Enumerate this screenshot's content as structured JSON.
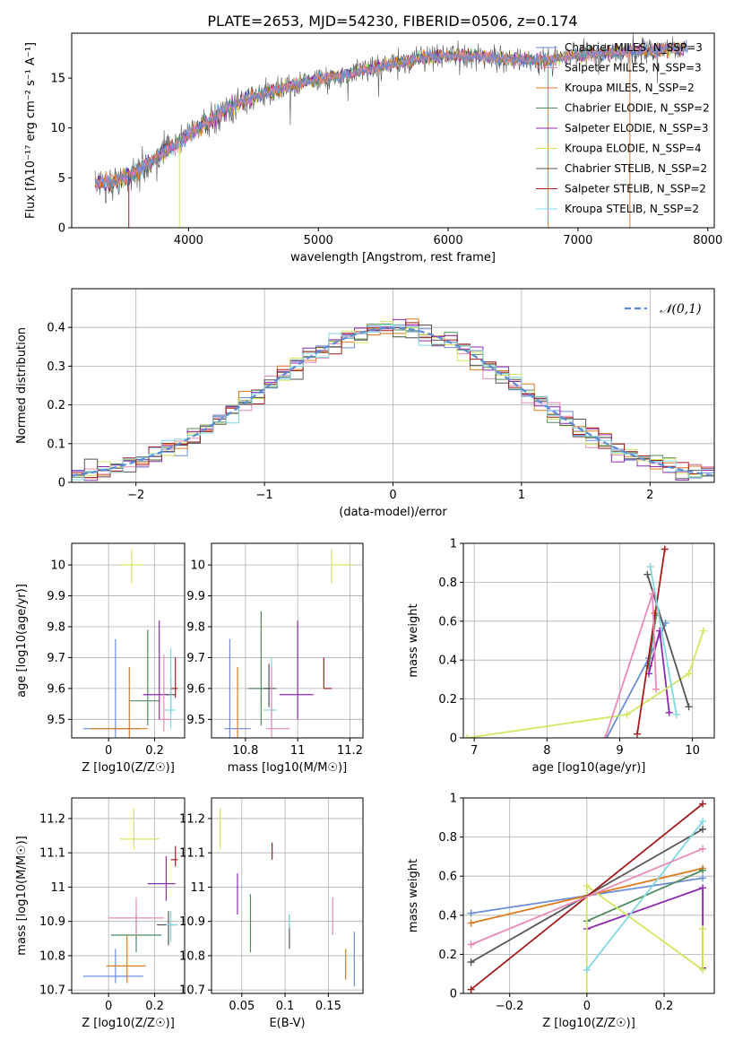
{
  "title": "PLATE=2653, MJD=54230, FIBERID=0506, z=0.174",
  "colors": [
    "#6a8fd8",
    "#e07b20",
    "#4f8a5e",
    "#8e2ab0",
    "#cfe860",
    "#555555",
    "#a51c1c",
    "#7fd8e0",
    "#e88ab8"
  ],
  "models": [
    {
      "label": "Chabrier MILES, N_SSP=3",
      "color": "#6a8fd8"
    },
    {
      "label": "Salpeter MILES, N_SSP=3",
      "color": "#e88ab8"
    },
    {
      "label": "Kroupa MILES, N_SSP=2",
      "color": "#e07b20"
    },
    {
      "label": "Chabrier ELODIE, N_SSP=2",
      "color": "#4f8a5e"
    },
    {
      "label": "Salpeter ELODIE, N_SSP=3",
      "color": "#8e2ab0"
    },
    {
      "label": "Kroupa ELODIE, N_SSP=4",
      "color": "#cfe860"
    },
    {
      "label": "Chabrier STELIB, N_SSP=2",
      "color": "#555555"
    },
    {
      "label": "Salpeter STELIB, N_SSP=2",
      "color": "#a51c1c"
    },
    {
      "label": "Kroupa STELIB, N_SSP=2",
      "color": "#7fd8e0"
    }
  ],
  "chart_data": [
    {
      "id": "spectrum",
      "type": "line",
      "xlabel": "wavelength [Angstrom, rest frame]",
      "ylabel": "Flux [fλ10⁻¹⁷ erg cm⁻² s⁻¹ A⁻¹]",
      "xlim": [
        3100,
        8050
      ],
      "ylim": [
        0,
        19.5
      ],
      "xticks": [
        4000,
        5000,
        6000,
        7000,
        8000
      ],
      "yticks": [
        0,
        5,
        10,
        15
      ],
      "continuum": {
        "x": [
          3280,
          3400,
          3550,
          3700,
          3850,
          3950,
          4050,
          4150,
          4300,
          4450,
          4600,
          4800,
          5000,
          5200,
          5400,
          5600,
          5800,
          6000,
          6200,
          6400,
          6600,
          6800,
          7000,
          7200,
          7400,
          7600,
          7800
        ],
        "y": [
          4.4,
          4.6,
          5.3,
          6.5,
          7.8,
          8.8,
          9.8,
          10.6,
          11.9,
          12.9,
          13.5,
          14.3,
          14.9,
          15.3,
          15.9,
          16.5,
          17.0,
          17.2,
          17.2,
          17.0,
          16.8,
          16.9,
          17.3,
          17.5,
          17.7,
          17.8,
          18.0
        ]
      },
      "model_drops_x": [
        3540,
        3930,
        6770,
        7400
      ]
    },
    {
      "id": "residuals",
      "type": "step",
      "xlabel": "(data-model)/error",
      "ylabel": "Normed distribution",
      "xlim": [
        -2.5,
        2.5
      ],
      "ylim": [
        0,
        0.5
      ],
      "xticks": [
        -2,
        -1,
        0,
        1,
        2
      ],
      "yticks": [
        0.0,
        0.1,
        0.2,
        0.3,
        0.4
      ],
      "legend": "𝒩(0,1)",
      "bin_width": 0.1
    },
    {
      "id": "age-vs-Z",
      "type": "errorbar",
      "xlabel": "Z [log10(Z/Z☉)]",
      "ylabel": "age  [log10(age/yr)]",
      "xlim": [
        -0.16,
        0.33
      ],
      "ylim": [
        9.44,
        10.07
      ],
      "xticks": [
        0.0,
        0.2
      ],
      "yticks": [
        9.5,
        9.6,
        9.7,
        9.8,
        9.9,
        10.0
      ],
      "points": [
        {
          "x": 0.03,
          "xerr": [
            0.14,
            0.11
          ],
          "y": 9.47,
          "yerr": [
            0.03,
            0.29
          ],
          "color": "#6a8fd8"
        },
        {
          "x": 0.09,
          "xerr": [
            0.17,
            0.08
          ],
          "y": 9.47,
          "yerr": [
            0.03,
            0.2
          ],
          "color": "#e07b20"
        },
        {
          "x": 0.17,
          "xerr": [
            0.08,
            0.05
          ],
          "y": 9.56,
          "yerr": [
            0.08,
            0.23
          ],
          "color": "#4f8a5e"
        },
        {
          "x": 0.22,
          "xerr": [
            0.07,
            0.04
          ],
          "y": 9.58,
          "yerr": [
            0.08,
            0.24
          ],
          "color": "#8e2ab0"
        },
        {
          "x": 0.1,
          "xerr": [
            0.05,
            0.05
          ],
          "y": 10.0,
          "yerr": [
            0.06,
            0.05
          ],
          "color": "#cfe860"
        },
        {
          "x": 0.27,
          "xerr": [
            0.02,
            0.02
          ],
          "y": 9.58,
          "yerr": [
            0.06,
            0.06
          ],
          "color": "#555555"
        },
        {
          "x": 0.29,
          "xerr": [
            0.02,
            0.01
          ],
          "y": 9.6,
          "yerr": [
            0.03,
            0.1
          ],
          "color": "#a51c1c"
        },
        {
          "x": 0.27,
          "xerr": [
            0.03,
            0.02
          ],
          "y": 9.53,
          "yerr": [
            0.06,
            0.2
          ],
          "color": "#7fd8e0"
        },
        {
          "x": 0.24,
          "xerr": [
            0.02,
            0.03
          ],
          "y": 9.5,
          "yerr": [
            0.04,
            0.21
          ],
          "color": "#e88ab8"
        }
      ]
    },
    {
      "id": "age-vs-mass",
      "type": "errorbar",
      "xlabel": "mass [log10(M/M☉)]",
      "ylabel": "",
      "xlim": [
        10.67,
        11.25
      ],
      "ylim": [
        9.44,
        10.07
      ],
      "xticks": [
        10.8,
        11.0,
        11.2
      ],
      "yticks": [
        9.5,
        9.6,
        9.7,
        9.8,
        9.9,
        10.0
      ],
      "points": [
        {
          "x": 10.74,
          "xerr": [
            0.02,
            0.08
          ],
          "y": 9.47,
          "yerr": [
            0.03,
            0.29
          ],
          "color": "#6a8fd8"
        },
        {
          "x": 10.77,
          "xerr": [
            0.0,
            0.0
          ],
          "y": 9.47,
          "yerr": [
            0.03,
            0.2
          ],
          "color": "#e07b20"
        },
        {
          "x": 10.86,
          "xerr": [
            0.05,
            0.06
          ],
          "y": 9.6,
          "yerr": [
            0.12,
            0.25
          ],
          "color": "#4f8a5e"
        },
        {
          "x": 11.0,
          "xerr": [
            0.07,
            0.06
          ],
          "y": 9.58,
          "yerr": [
            0.08,
            0.24
          ],
          "color": "#8e2ab0"
        },
        {
          "x": 11.13,
          "xerr": [
            0.0,
            0.08
          ],
          "y": 10.0,
          "yerr": [
            0.06,
            0.05
          ],
          "color": "#cfe860"
        },
        {
          "x": 10.89,
          "xerr": [
            0.02,
            0.02
          ],
          "y": 9.6,
          "yerr": [
            0.06,
            0.08
          ],
          "color": "#555555"
        },
        {
          "x": 11.1,
          "xerr": [
            0.0,
            0.03
          ],
          "y": 9.6,
          "yerr": [
            0.0,
            0.1
          ],
          "color": "#a51c1c"
        },
        {
          "x": 10.9,
          "xerr": [
            0.03,
            0.02
          ],
          "y": 9.53,
          "yerr": [
            0.06,
            0.17
          ],
          "color": "#7fd8e0"
        },
        {
          "x": 10.9,
          "xerr": [
            0.02,
            0.07
          ],
          "y": 9.47,
          "yerr": [
            0.03,
            0.2
          ],
          "color": "#e88ab8"
        }
      ]
    },
    {
      "id": "weight-vs-age",
      "type": "line",
      "xlabel": "age  [log10(age/yr)]",
      "ylabel": "mass weight",
      "xlim": [
        6.85,
        10.3
      ],
      "ylim": [
        0,
        1.0
      ],
      "xticks": [
        7,
        8,
        9,
        10
      ],
      "yticks": [
        0.0,
        0.2,
        0.4,
        0.6,
        0.8,
        1.0
      ],
      "series": [
        {
          "color": "#6a8fd8",
          "x": [
            8.82,
            9.4,
            9.63
          ],
          "y": [
            0.0,
            0.41,
            0.59
          ]
        },
        {
          "color": "#e07b20",
          "x": [
            9.4,
            9.48
          ],
          "y": [
            0.37,
            0.64
          ]
        },
        {
          "color": "#4f8a5e",
          "x": [
            9.4,
            9.5
          ],
          "y": [
            0.37,
            0.63
          ]
        },
        {
          "color": "#8e2ab0",
          "x": [
            9.4,
            9.55,
            9.68
          ],
          "y": [
            0.33,
            0.55,
            0.13
          ]
        },
        {
          "color": "#cfe860",
          "x": [
            6.9,
            9.1,
            9.95,
            10.15
          ],
          "y": [
            0.0,
            0.12,
            0.33,
            0.55
          ]
        },
        {
          "color": "#555555",
          "x": [
            9.38,
            9.95
          ],
          "y": [
            0.84,
            0.16
          ]
        },
        {
          "color": "#a51c1c",
          "x": [
            9.24,
            9.62
          ],
          "y": [
            0.02,
            0.97
          ]
        },
        {
          "color": "#7fd8e0",
          "x": [
            9.42,
            9.78
          ],
          "y": [
            0.88,
            0.12
          ]
        },
        {
          "color": "#e88ab8",
          "x": [
            8.8,
            9.45,
            9.5
          ],
          "y": [
            0.0,
            0.74,
            0.25
          ]
        }
      ]
    },
    {
      "id": "mass-vs-Z",
      "type": "errorbar",
      "xlabel": "Z [log10(Z/Z☉)]",
      "ylabel": "mass [log10(M/M☉)]",
      "xlim": [
        -0.16,
        0.33
      ],
      "ylim": [
        10.69,
        11.26
      ],
      "xticks": [
        0.0,
        0.2
      ],
      "yticks": [
        10.7,
        10.8,
        10.9,
        11.0,
        11.1,
        11.2
      ],
      "points": [
        {
          "x": 0.03,
          "xerr": [
            0.14,
            0.12
          ],
          "y": 10.74,
          "yerr": [
            0.02,
            0.08
          ],
          "color": "#6a8fd8"
        },
        {
          "x": 0.08,
          "xerr": [
            0.09,
            0.08
          ],
          "y": 10.77,
          "yerr": [
            0.05,
            0.09
          ],
          "color": "#e07b20"
        },
        {
          "x": 0.12,
          "xerr": [
            0.11,
            0.11
          ],
          "y": 10.86,
          "yerr": [
            0.05,
            0.06
          ],
          "color": "#4f8a5e"
        },
        {
          "x": 0.25,
          "xerr": [
            0.08,
            0.04
          ],
          "y": 11.01,
          "yerr": [
            0.05,
            0.08
          ],
          "color": "#8e2ab0"
        },
        {
          "x": 0.11,
          "xerr": [
            0.06,
            0.11
          ],
          "y": 11.14,
          "yerr": [
            0.03,
            0.09
          ],
          "color": "#cfe860"
        },
        {
          "x": 0.26,
          "xerr": [
            0.05,
            0.04
          ],
          "y": 10.89,
          "yerr": [
            0.06,
            0.04
          ],
          "color": "#555555"
        },
        {
          "x": 0.29,
          "xerr": [
            0.02,
            0.01
          ],
          "y": 11.08,
          "yerr": [
            0.02,
            0.04
          ],
          "color": "#a51c1c"
        },
        {
          "x": 0.27,
          "xerr": [
            0.02,
            0.03
          ],
          "y": 10.89,
          "yerr": [
            0.05,
            0.04
          ],
          "color": "#7fd8e0"
        },
        {
          "x": 0.12,
          "xerr": [
            0.12,
            0.12
          ],
          "y": 10.91,
          "yerr": [
            0.05,
            0.06
          ],
          "color": "#e88ab8"
        }
      ]
    },
    {
      "id": "mass-vs-ebv",
      "type": "errorbar",
      "xlabel": "E(B-V)",
      "ylabel": "",
      "xlim": [
        0.015,
        0.19
      ],
      "ylim": [
        10.69,
        11.26
      ],
      "xticks": [
        0.05,
        0.1,
        0.15
      ],
      "yticks": [
        10.7,
        10.8,
        10.9,
        11.0,
        11.1,
        11.2
      ],
      "points": [
        {
          "x": 0.18,
          "xerr": [
            0,
            0
          ],
          "y": 10.75,
          "yerr": [
            0.04,
            0.12
          ],
          "color": "#6a8fd8"
        },
        {
          "x": 0.17,
          "xerr": [
            0,
            0
          ],
          "y": 10.77,
          "yerr": [
            0.04,
            0.05
          ],
          "color": "#e07b20"
        },
        {
          "x": 0.06,
          "xerr": [
            0,
            0
          ],
          "y": 10.86,
          "yerr": [
            0.05,
            0.12
          ],
          "color": "#4f8a5e"
        },
        {
          "x": 0.045,
          "xerr": [
            0,
            0
          ],
          "y": 11.0,
          "yerr": [
            0.08,
            0.04
          ],
          "color": "#8e2ab0"
        },
        {
          "x": 0.025,
          "xerr": [
            0,
            0
          ],
          "y": 11.16,
          "yerr": [
            0.05,
            0.07
          ],
          "color": "#cfe860"
        },
        {
          "x": 0.105,
          "xerr": [
            0,
            0
          ],
          "y": 10.87,
          "yerr": [
            0.05,
            0.05
          ],
          "color": "#555555"
        },
        {
          "x": 0.085,
          "xerr": [
            0,
            0
          ],
          "y": 11.1,
          "yerr": [
            0.02,
            0.03
          ],
          "color": "#a51c1c"
        },
        {
          "x": 0.105,
          "xerr": [
            0,
            0
          ],
          "y": 10.88,
          "yerr": [
            0.0,
            0.04
          ],
          "color": "#7fd8e0"
        },
        {
          "x": 0.155,
          "xerr": [
            0,
            0
          ],
          "y": 10.92,
          "yerr": [
            0.06,
            0.05
          ],
          "color": "#e88ab8"
        }
      ]
    },
    {
      "id": "weight-vs-Z",
      "type": "line",
      "xlabel": "Z [log10(Z/Z☉)]",
      "ylabel": "mass weight",
      "xlim": [
        -0.32,
        0.33
      ],
      "ylim": [
        0,
        1.0
      ],
      "xticks": [
        -0.2,
        0.0,
        0.2
      ],
      "yticks": [
        0.0,
        0.2,
        0.4,
        0.6,
        0.8,
        1.0
      ],
      "series": [
        {
          "color": "#6a8fd8",
          "x": [
            -0.3,
            0.0,
            0.3
          ],
          "y": [
            0.41,
            0.5,
            0.59
          ]
        },
        {
          "color": "#e07b20",
          "x": [
            -0.3,
            0.0,
            0.3
          ],
          "y": [
            0.36,
            0.5,
            0.64
          ]
        },
        {
          "color": "#4f8a5e",
          "x": [
            0.0,
            0.3
          ],
          "y": [
            0.37,
            0.63
          ]
        },
        {
          "color": "#8e2ab0",
          "x": [
            0.0,
            0.3,
            0.3
          ],
          "y": [
            0.33,
            0.54,
            0.13
          ]
        },
        {
          "color": "#cfe860",
          "x": [
            0.0,
            0.0,
            0.3,
            0.3
          ],
          "y": [
            0.0,
            0.55,
            0.12,
            0.33
          ]
        },
        {
          "color": "#555555",
          "x": [
            -0.3,
            0.3
          ],
          "y": [
            0.16,
            0.84
          ]
        },
        {
          "color": "#a51c1c",
          "x": [
            -0.3,
            0.3
          ],
          "y": [
            0.02,
            0.97
          ]
        },
        {
          "color": "#7fd8e0",
          "x": [
            0.0,
            0.3
          ],
          "y": [
            0.12,
            0.88
          ]
        },
        {
          "color": "#e88ab8",
          "x": [
            -0.3,
            0.3
          ],
          "y": [
            0.25,
            0.74
          ]
        }
      ]
    }
  ]
}
